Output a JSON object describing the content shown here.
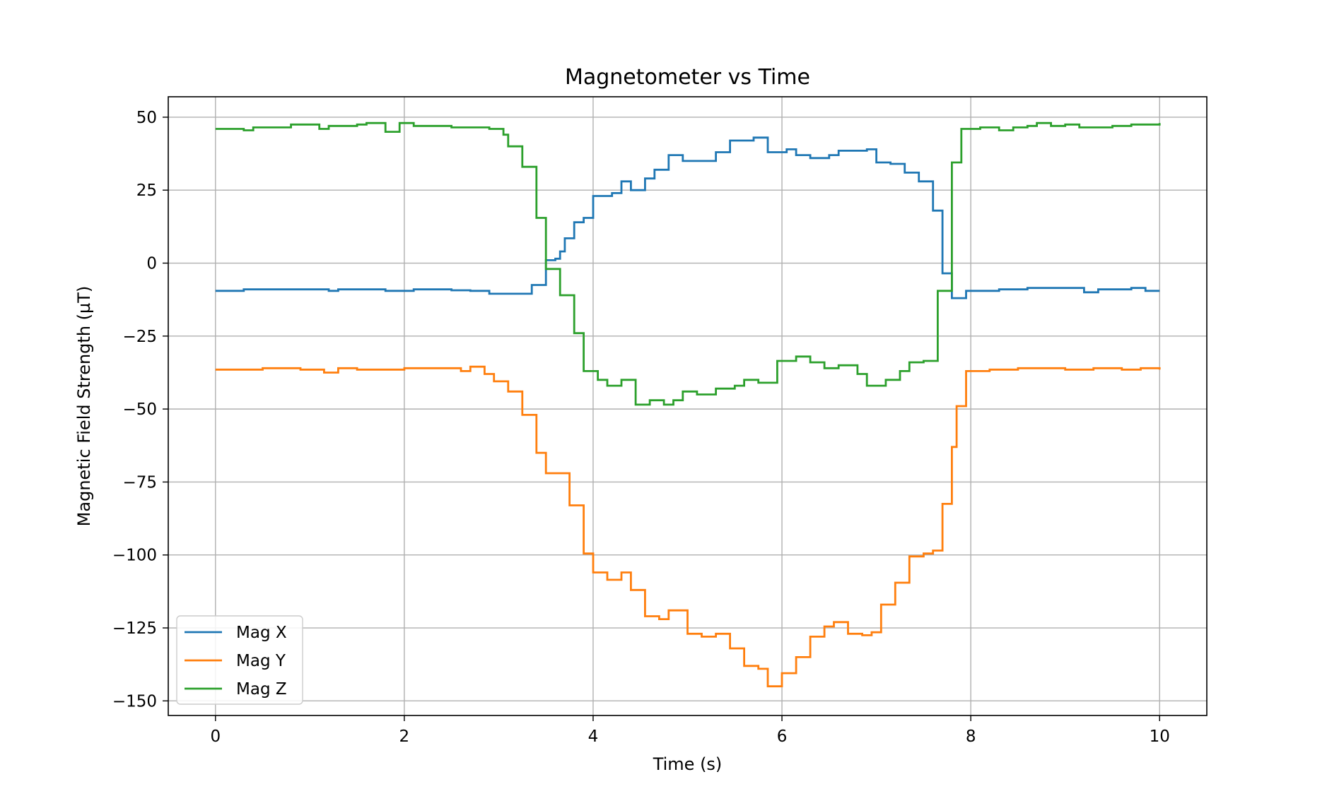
{
  "chart_data": {
    "type": "line",
    "title": "Magnetometer vs Time",
    "xlabel": "Time (s)",
    "ylabel": "Magnetic Field Strength (µT)",
    "xlim": [
      -0.5,
      10.5
    ],
    "ylim": [
      -155,
      57
    ],
    "xticks": [
      0,
      2,
      4,
      6,
      8,
      10
    ],
    "xtick_labels": [
      "0",
      "2",
      "4",
      "6",
      "8",
      "10"
    ],
    "yticks": [
      50,
      25,
      0,
      -25,
      -50,
      -75,
      -100,
      -125,
      -150
    ],
    "ytick_labels": [
      "50",
      "25",
      "0",
      "−25",
      "−50",
      "−75",
      "−100",
      "−125",
      "−150"
    ],
    "grid": true,
    "legend_position": "lower-left",
    "step": "post",
    "series": [
      {
        "name": "Mag X",
        "color": "#1f77b4",
        "points": [
          [
            0,
            -9.5
          ],
          [
            0.3,
            -9
          ],
          [
            0.6,
            -9
          ],
          [
            1.2,
            -9.5
          ],
          [
            1.3,
            -9
          ],
          [
            1.8,
            -9.5
          ],
          [
            2.1,
            -9
          ],
          [
            2.5,
            -9.3
          ],
          [
            2.7,
            -9.5
          ],
          [
            2.9,
            -10.5
          ],
          [
            3.2,
            -10.5
          ],
          [
            3.35,
            -7.5
          ],
          [
            3.5,
            1
          ],
          [
            3.6,
            1.5
          ],
          [
            3.65,
            4
          ],
          [
            3.7,
            8.5
          ],
          [
            3.8,
            14
          ],
          [
            3.9,
            15.5
          ],
          [
            4.0,
            23
          ],
          [
            4.2,
            24
          ],
          [
            4.3,
            28
          ],
          [
            4.4,
            25
          ],
          [
            4.55,
            29
          ],
          [
            4.65,
            32
          ],
          [
            4.8,
            37
          ],
          [
            4.95,
            35
          ],
          [
            5.3,
            38
          ],
          [
            5.45,
            42
          ],
          [
            5.7,
            43
          ],
          [
            5.85,
            38
          ],
          [
            6.05,
            39
          ],
          [
            6.15,
            37
          ],
          [
            6.3,
            36
          ],
          [
            6.5,
            37
          ],
          [
            6.6,
            38.5
          ],
          [
            6.9,
            39
          ],
          [
            7.0,
            34.5
          ],
          [
            7.15,
            34
          ],
          [
            7.3,
            31
          ],
          [
            7.45,
            28
          ],
          [
            7.6,
            18
          ],
          [
            7.7,
            -3.5
          ],
          [
            7.8,
            -12
          ],
          [
            7.95,
            -9.5
          ],
          [
            8.3,
            -9
          ],
          [
            8.6,
            -8.5
          ],
          [
            9.0,
            -8.5
          ],
          [
            9.2,
            -10
          ],
          [
            9.35,
            -9
          ],
          [
            9.7,
            -8.5
          ],
          [
            9.85,
            -9.5
          ],
          [
            10.0,
            -9.5
          ]
        ]
      },
      {
        "name": "Mag Y",
        "color": "#ff7f0e",
        "points": [
          [
            0,
            -36.5
          ],
          [
            0.5,
            -36
          ],
          [
            0.9,
            -36.5
          ],
          [
            1.15,
            -37.5
          ],
          [
            1.3,
            -36
          ],
          [
            1.5,
            -36.5
          ],
          [
            2.0,
            -36
          ],
          [
            2.6,
            -37
          ],
          [
            2.7,
            -35.5
          ],
          [
            2.85,
            -38
          ],
          [
            2.95,
            -40.5
          ],
          [
            3.1,
            -44
          ],
          [
            3.25,
            -52
          ],
          [
            3.4,
            -65
          ],
          [
            3.5,
            -72
          ],
          [
            3.75,
            -83
          ],
          [
            3.9,
            -99.5
          ],
          [
            4.0,
            -106
          ],
          [
            4.15,
            -108.5
          ],
          [
            4.3,
            -106
          ],
          [
            4.4,
            -112
          ],
          [
            4.55,
            -121
          ],
          [
            4.7,
            -122
          ],
          [
            4.8,
            -119
          ],
          [
            5.0,
            -127
          ],
          [
            5.15,
            -128
          ],
          [
            5.3,
            -127
          ],
          [
            5.45,
            -132
          ],
          [
            5.6,
            -138
          ],
          [
            5.75,
            -139
          ],
          [
            5.85,
            -145
          ],
          [
            6.0,
            -140.5
          ],
          [
            6.15,
            -135
          ],
          [
            6.3,
            -128
          ],
          [
            6.45,
            -124.5
          ],
          [
            6.55,
            -123
          ],
          [
            6.7,
            -127
          ],
          [
            6.85,
            -127.5
          ],
          [
            6.95,
            -126.5
          ],
          [
            7.05,
            -117
          ],
          [
            7.2,
            -109.5
          ],
          [
            7.35,
            -100.5
          ],
          [
            7.5,
            -99.5
          ],
          [
            7.6,
            -98.5
          ],
          [
            7.7,
            -82.5
          ],
          [
            7.8,
            -63
          ],
          [
            7.85,
            -49
          ],
          [
            7.95,
            -37
          ],
          [
            8.2,
            -36.5
          ],
          [
            8.5,
            -36
          ],
          [
            9.0,
            -36.5
          ],
          [
            9.3,
            -36
          ],
          [
            9.6,
            -36.5
          ],
          [
            9.8,
            -36
          ],
          [
            10.0,
            -36.5
          ]
        ]
      },
      {
        "name": "Mag Z",
        "color": "#2ca02c",
        "points": [
          [
            0,
            46
          ],
          [
            0.3,
            45.5
          ],
          [
            0.4,
            46.5
          ],
          [
            0.6,
            46.5
          ],
          [
            0.8,
            47.5
          ],
          [
            1.1,
            46
          ],
          [
            1.2,
            47
          ],
          [
            1.5,
            47.5
          ],
          [
            1.6,
            48
          ],
          [
            1.8,
            45
          ],
          [
            1.95,
            48
          ],
          [
            2.1,
            47
          ],
          [
            2.5,
            46.5
          ],
          [
            2.9,
            46
          ],
          [
            3.05,
            44
          ],
          [
            3.1,
            40
          ],
          [
            3.25,
            33
          ],
          [
            3.4,
            15.5
          ],
          [
            3.5,
            -2
          ],
          [
            3.65,
            -11
          ],
          [
            3.8,
            -24
          ],
          [
            3.9,
            -37
          ],
          [
            4.05,
            -40
          ],
          [
            4.15,
            -42
          ],
          [
            4.3,
            -40
          ],
          [
            4.45,
            -48.5
          ],
          [
            4.6,
            -47
          ],
          [
            4.75,
            -48.5
          ],
          [
            4.85,
            -47
          ],
          [
            4.95,
            -44
          ],
          [
            5.1,
            -45
          ],
          [
            5.3,
            -43
          ],
          [
            5.5,
            -42
          ],
          [
            5.6,
            -40
          ],
          [
            5.75,
            -41
          ],
          [
            5.95,
            -33.5
          ],
          [
            6.15,
            -32
          ],
          [
            6.3,
            -34
          ],
          [
            6.45,
            -36
          ],
          [
            6.6,
            -35
          ],
          [
            6.8,
            -38
          ],
          [
            6.9,
            -42
          ],
          [
            7.1,
            -40
          ],
          [
            7.25,
            -37
          ],
          [
            7.35,
            -34
          ],
          [
            7.5,
            -33.5
          ],
          [
            7.65,
            -9.5
          ],
          [
            7.8,
            34.5
          ],
          [
            7.9,
            46
          ],
          [
            8.1,
            46.5
          ],
          [
            8.3,
            45.5
          ],
          [
            8.45,
            46.5
          ],
          [
            8.6,
            47
          ],
          [
            8.7,
            48
          ],
          [
            8.85,
            47
          ],
          [
            9.0,
            47.5
          ],
          [
            9.15,
            46.5
          ],
          [
            9.5,
            47
          ],
          [
            9.7,
            47.5
          ],
          [
            10.0,
            48
          ]
        ]
      }
    ]
  }
}
